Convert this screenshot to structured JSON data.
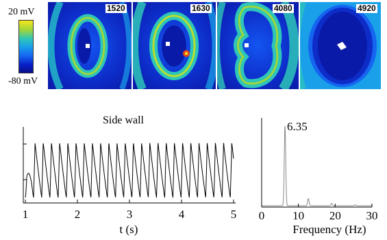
{
  "colorbar": {
    "max_label": "20 mV",
    "min_label": "-80 mV",
    "colors": [
      "#f5e61e",
      "#9fd53a",
      "#2ec6b8",
      "#1aa0e8",
      "#1565f0",
      "#0a1ec8",
      "#08108a"
    ]
  },
  "frames": [
    {
      "label": "1520"
    },
    {
      "label": "1630"
    },
    {
      "label": "4080"
    },
    {
      "label": "4920"
    }
  ],
  "chart_data": [
    {
      "type": "line",
      "title": "Side wall",
      "xlabel": "t (s)",
      "ylabel": "",
      "xlim": [
        1,
        5
      ],
      "xticks": [
        1,
        2,
        3,
        4,
        5
      ],
      "oscillation_frequency_hz": 6.35,
      "series": [
        {
          "t_start": 1.0,
          "t_end": 5.0,
          "cycles": 25
        }
      ]
    },
    {
      "type": "line",
      "title": "",
      "xlabel": "Frequency (Hz)",
      "ylabel": "",
      "xlim": [
        0,
        30
      ],
      "xticks": [
        0,
        10,
        20,
        30
      ],
      "annotation": "6.35",
      "peaks": [
        {
          "x": 6.35,
          "y": 1.0
        },
        {
          "x": 12.7,
          "y": 0.09
        },
        {
          "x": 19.05,
          "y": 0.03
        },
        {
          "x": 25.4,
          "y": 0.01
        }
      ]
    }
  ]
}
